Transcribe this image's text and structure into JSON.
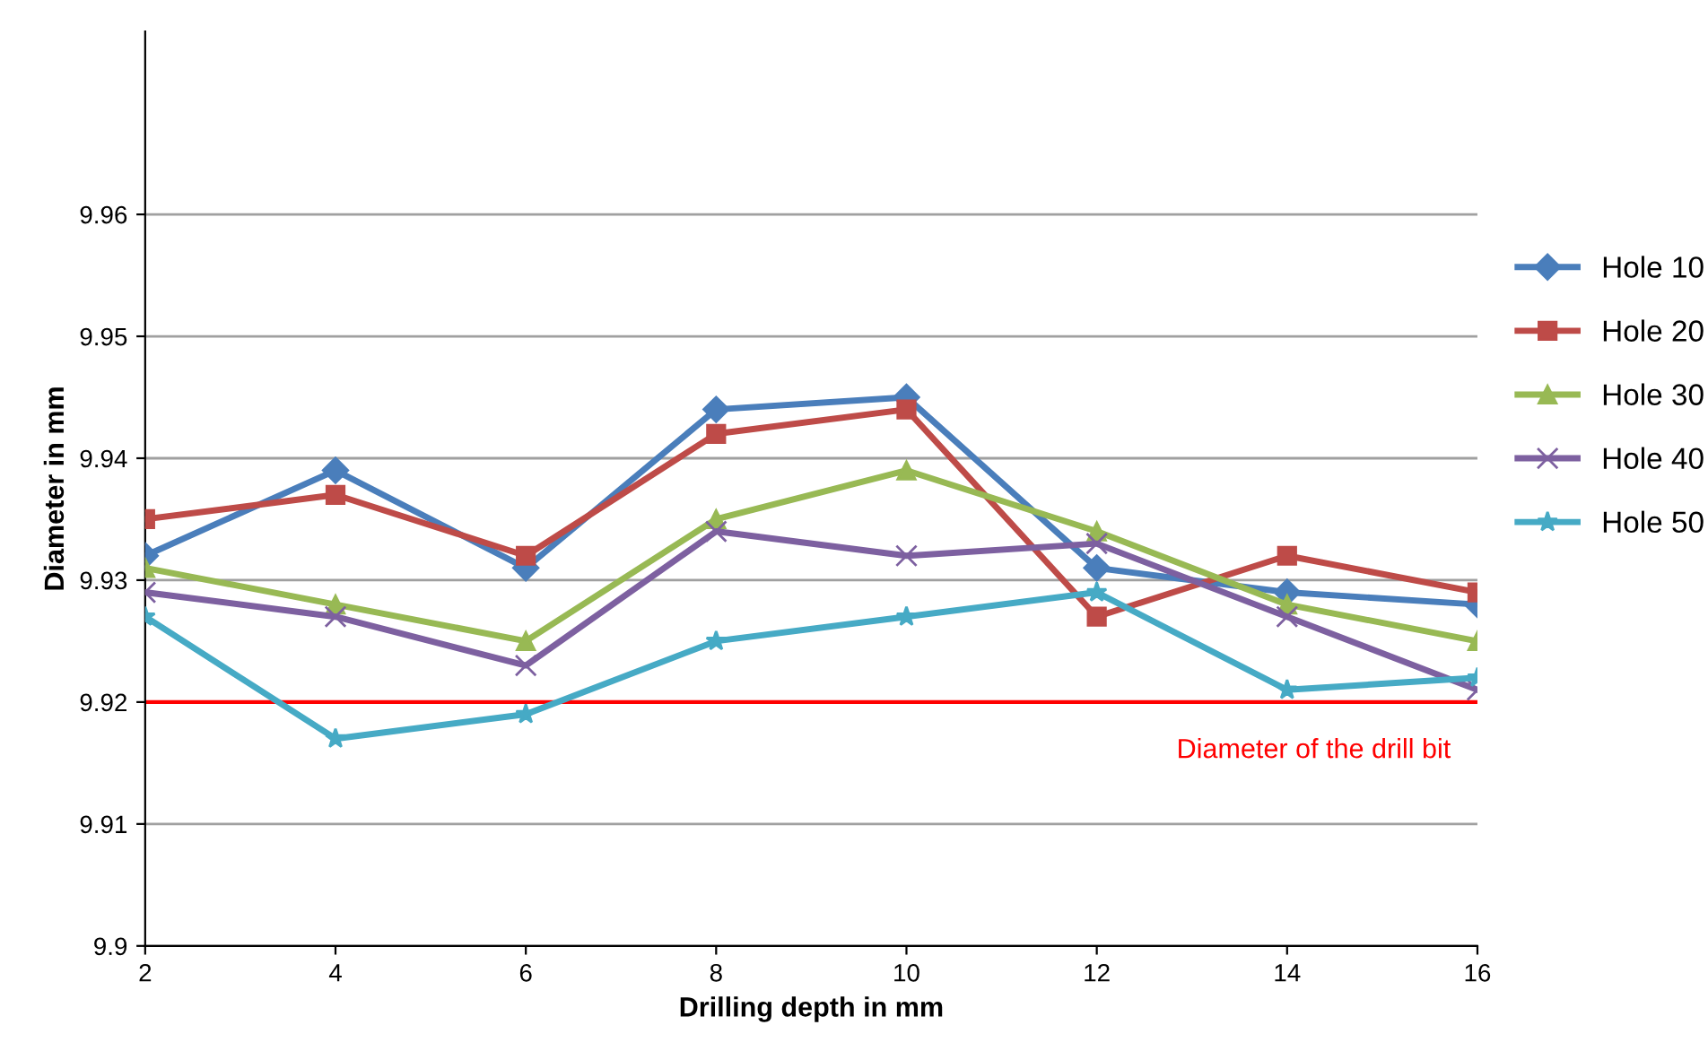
{
  "chart_data": {
    "type": "line",
    "xlabel": "Drilling depth in mm",
    "ylabel": "Diameter in mm",
    "x": [
      2,
      4,
      6,
      8,
      10,
      12,
      14,
      16
    ],
    "series": [
      {
        "name": "Hole 10",
        "color": "#4a7ebb",
        "marker": "diamond",
        "values": [
          9.932,
          9.939,
          9.931,
          9.944,
          9.945,
          9.931,
          9.929,
          9.928
        ]
      },
      {
        "name": "Hole 20",
        "color": "#be4b48",
        "marker": "square",
        "values": [
          9.935,
          9.937,
          9.932,
          9.942,
          9.944,
          9.927,
          9.932,
          9.929
        ]
      },
      {
        "name": "Hole 30",
        "color": "#98b954",
        "marker": "triangle",
        "values": [
          9.931,
          9.928,
          9.925,
          9.935,
          9.939,
          9.934,
          9.928,
          9.925
        ]
      },
      {
        "name": "Hole 40",
        "color": "#7d60a0",
        "marker": "cross",
        "values": [
          9.929,
          9.927,
          9.923,
          9.934,
          9.932,
          9.933,
          9.927,
          9.921
        ]
      },
      {
        "name": "Hole 50",
        "color": "#46aac5",
        "marker": "star",
        "values": [
          9.927,
          9.917,
          9.919,
          9.925,
          9.927,
          9.929,
          9.921,
          9.922
        ]
      }
    ],
    "xlim": [
      2,
      16
    ],
    "xticks": [
      2,
      4,
      6,
      8,
      10,
      12,
      14,
      16
    ],
    "ylim": [
      9.9,
      9.975
    ],
    "yticks": [
      9.9,
      9.91,
      9.92,
      9.93,
      9.94,
      9.95,
      9.96
    ],
    "ref_lines": [
      {
        "axis": "y",
        "value": 9.92,
        "label": "Diameter of the drill bit",
        "color": "#ff0000"
      }
    ],
    "grid": "y",
    "legend": "right"
  }
}
